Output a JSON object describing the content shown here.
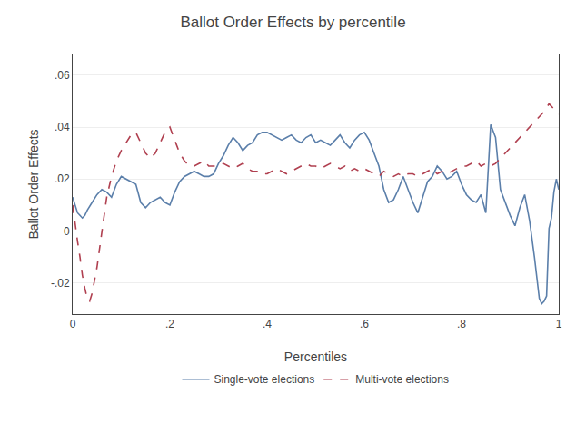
{
  "chart_data": {
    "type": "line",
    "title": "Ballot Order Effects by percentile",
    "xlabel": "Percentiles",
    "ylabel": "Ballot Order Effects",
    "xlim": [
      0,
      1
    ],
    "ylim": [
      -0.032,
      0.068
    ],
    "xticks": [
      0,
      {
        "value": 0.2,
        "label": ".2"
      },
      {
        "value": 0.4,
        "label": ".4"
      },
      {
        "value": 0.6,
        "label": ".6"
      },
      {
        "value": 0.8,
        "label": ".8"
      },
      1
    ],
    "yticks": [
      {
        "value": -0.02,
        "label": "-.02"
      },
      0,
      {
        "value": 0.02,
        "label": ".02"
      },
      {
        "value": 0.04,
        "label": ".04"
      },
      {
        "value": 0.06,
        "label": ".06"
      }
    ],
    "grid": true,
    "legend": "bottom",
    "series": [
      {
        "name": "Single-vote elections",
        "color": "#5b7faa",
        "line_style": "solid",
        "x": [
          0.0,
          0.01,
          0.015,
          0.02,
          0.025,
          0.03,
          0.04,
          0.05,
          0.06,
          0.07,
          0.08,
          0.09,
          0.1,
          0.11,
          0.12,
          0.13,
          0.14,
          0.15,
          0.16,
          0.17,
          0.18,
          0.19,
          0.2,
          0.21,
          0.22,
          0.23,
          0.24,
          0.25,
          0.26,
          0.27,
          0.28,
          0.29,
          0.3,
          0.31,
          0.32,
          0.33,
          0.34,
          0.35,
          0.36,
          0.37,
          0.38,
          0.39,
          0.4,
          0.41,
          0.42,
          0.43,
          0.44,
          0.45,
          0.46,
          0.47,
          0.48,
          0.49,
          0.5,
          0.51,
          0.52,
          0.53,
          0.54,
          0.55,
          0.56,
          0.57,
          0.58,
          0.59,
          0.6,
          0.61,
          0.62,
          0.63,
          0.64,
          0.65,
          0.66,
          0.67,
          0.68,
          0.69,
          0.7,
          0.71,
          0.72,
          0.73,
          0.74,
          0.75,
          0.76,
          0.77,
          0.78,
          0.79,
          0.8,
          0.81,
          0.82,
          0.83,
          0.84,
          0.85,
          0.86,
          0.87,
          0.88,
          0.89,
          0.9,
          0.91,
          0.92,
          0.93,
          0.94,
          0.95,
          0.96,
          0.965,
          0.97,
          0.975,
          0.98,
          0.985,
          0.99,
          0.995,
          1.0
        ],
        "values": [
          0.013,
          0.007,
          0.006,
          0.005,
          0.006,
          0.008,
          0.011,
          0.014,
          0.016,
          0.015,
          0.013,
          0.018,
          0.021,
          0.02,
          0.019,
          0.018,
          0.011,
          0.009,
          0.011,
          0.012,
          0.013,
          0.011,
          0.01,
          0.015,
          0.019,
          0.021,
          0.022,
          0.023,
          0.022,
          0.021,
          0.021,
          0.022,
          0.026,
          0.029,
          0.033,
          0.036,
          0.034,
          0.031,
          0.033,
          0.034,
          0.037,
          0.038,
          0.038,
          0.037,
          0.036,
          0.035,
          0.036,
          0.037,
          0.035,
          0.034,
          0.036,
          0.037,
          0.034,
          0.035,
          0.034,
          0.033,
          0.035,
          0.037,
          0.034,
          0.032,
          0.035,
          0.037,
          0.038,
          0.035,
          0.03,
          0.025,
          0.016,
          0.011,
          0.012,
          0.016,
          0.021,
          0.016,
          0.011,
          0.007,
          0.013,
          0.019,
          0.021,
          0.025,
          0.023,
          0.02,
          0.021,
          0.023,
          0.018,
          0.014,
          0.012,
          0.011,
          0.014,
          0.007,
          0.041,
          0.036,
          0.016,
          0.011,
          0.006,
          0.002,
          0.009,
          0.014,
          0.004,
          -0.01,
          -0.026,
          -0.028,
          -0.027,
          -0.025,
          0.001,
          0.005,
          0.015,
          0.02,
          0.016
        ]
      },
      {
        "name": "Multi-vote elections",
        "color": "#b04050",
        "line_style": "dashed",
        "x": [
          0.0,
          0.005,
          0.01,
          0.015,
          0.02,
          0.025,
          0.03,
          0.035,
          0.04,
          0.05,
          0.06,
          0.07,
          0.08,
          0.09,
          0.1,
          0.11,
          0.12,
          0.13,
          0.14,
          0.15,
          0.16,
          0.17,
          0.18,
          0.19,
          0.2,
          0.21,
          0.22,
          0.23,
          0.24,
          0.25,
          0.26,
          0.27,
          0.28,
          0.29,
          0.3,
          0.31,
          0.32,
          0.33,
          0.34,
          0.35,
          0.36,
          0.37,
          0.38,
          0.39,
          0.4,
          0.41,
          0.42,
          0.43,
          0.44,
          0.45,
          0.46,
          0.47,
          0.48,
          0.49,
          0.5,
          0.51,
          0.52,
          0.53,
          0.54,
          0.55,
          0.56,
          0.57,
          0.58,
          0.59,
          0.6,
          0.61,
          0.62,
          0.63,
          0.64,
          0.65,
          0.66,
          0.67,
          0.68,
          0.69,
          0.7,
          0.71,
          0.72,
          0.73,
          0.74,
          0.75,
          0.76,
          0.77,
          0.78,
          0.79,
          0.8,
          0.81,
          0.82,
          0.83,
          0.84,
          0.85,
          0.86,
          0.87,
          0.88,
          0.89,
          0.9,
          0.91,
          0.92,
          0.93,
          0.94,
          0.95,
          0.96,
          0.97,
          0.98,
          0.99,
          1.0
        ],
        "values": [
          0.01,
          0.002,
          -0.004,
          -0.01,
          -0.017,
          -0.022,
          -0.026,
          -0.027,
          -0.024,
          -0.014,
          0.0,
          0.013,
          0.021,
          0.027,
          0.031,
          0.034,
          0.037,
          0.038,
          0.034,
          0.03,
          0.028,
          0.03,
          0.034,
          0.038,
          0.04,
          0.035,
          0.03,
          0.027,
          0.025,
          0.025,
          0.026,
          0.027,
          0.025,
          0.025,
          0.025,
          0.026,
          0.025,
          0.024,
          0.025,
          0.026,
          0.024,
          0.023,
          0.023,
          0.022,
          0.022,
          0.023,
          0.024,
          0.023,
          0.022,
          0.023,
          0.024,
          0.025,
          0.026,
          0.025,
          0.025,
          0.024,
          0.025,
          0.026,
          0.025,
          0.024,
          0.025,
          0.023,
          0.024,
          0.023,
          0.024,
          0.023,
          0.022,
          0.021,
          0.023,
          0.022,
          0.021,
          0.022,
          0.021,
          0.022,
          0.022,
          0.021,
          0.022,
          0.023,
          0.024,
          0.022,
          0.023,
          0.022,
          0.023,
          0.024,
          0.025,
          0.025,
          0.026,
          0.027,
          0.025,
          0.026,
          0.025,
          0.026,
          0.028,
          0.03,
          0.032,
          0.034,
          0.036,
          0.038,
          0.04,
          0.042,
          0.044,
          0.046,
          0.049,
          0.047,
          0.045
        ]
      }
    ]
  }
}
